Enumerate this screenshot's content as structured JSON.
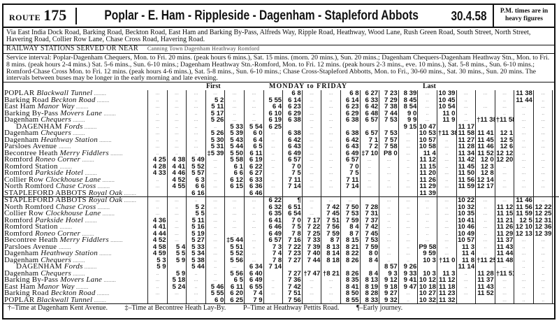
{
  "header": {
    "route_label": "ROUTE",
    "route_number": "175",
    "title": "Poplar - E. Ham - Rippleside - Dagenham - Stapleford Abbots",
    "date": "30.4.58",
    "pm_note": "P.M. times are in heavy figures"
  },
  "via": "Via East India Dock Road, Barking Road, Beckton Road, East Ham and Barking By-Pass, Alfreds Way, Ripple Road, Heathway, Wood Lane, Rush Green Road, South Street, North Street, Havering Road, Collier Row Lane, Chase Cross Road, Havering Road.",
  "railway": {
    "label": "RAILWAY STATIONS SERVED OR NEAR",
    "stations": "Canning Town  Dagenham Heathway  Romford"
  },
  "service_interval": "Service interval: Poplar-Dagenham Chequers, Mon. to Fri. 20 mins. (peak hours 6 mins.), Sat. 15 mins. (morn. 20 mins.), Sun. 20 mins.; Dagenham Chequers-Dagenham Heathway Stn., Mon. to Fri. 8 mins. (peak hours 2-4 mins.) Sat. 5-6 mins., Sun. 6-10 mins.; Dagenham Heathway Stn.-Romford, Mon. to Fri. 12 mins. (peak hours 2-3 mins., eve. 10 mins.), Sat. 5-8 mins., Sun. 6-10 mins.; Romford-Chase Cross Mon. to Fri. 12 mins. (peak hours 4-6 mins.), Sat. 5-8 mins., Sun. 6-10 mins.; Chase Cross-Stapleford Abbotts, Mon. to Fri., 30-60 mins., Sat. 30 mins., Sun. 20 mins. The intervals between buses may be longer in the early morning and late evening.",
  "table_header": {
    "first": "First",
    "period": "MONDAY to FRIDAY",
    "last": "Last"
  },
  "outbound": [
    {
      "stop": "POPLAR",
      "detail": "Blackwall Tunnel",
      "times": [
        "...",
        "...",
        "...",
        "...",
        "...",
        "...",
        "",
        "6 8",
        "...",
        "...",
        "6 8",
        "6 27",
        "7 23",
        "8 39",
        "...",
        "10 39",
        "...",
        "...",
        "...",
        "11 38",
        "...",
        "..."
      ]
    },
    {
      "stop": "Barking Road",
      "detail": "Beckton Road",
      "times": [
        "..",
        "..",
        "..",
        "5 2",
        "..",
        "..",
        "5 55",
        "6 14",
        "..",
        "..",
        "6 14",
        "6 33",
        "7 29",
        "8 45",
        "..",
        "10 45",
        "..",
        "",
        "..",
        "11 44",
        "..",
        ".."
      ]
    },
    {
      "stop": "East Ham",
      "detail": "Manor Way",
      "times": [
        "...",
        "...",
        "...",
        "5 11",
        "...",
        "...",
        "6 4",
        "6 23",
        "...",
        "...",
        "6 23",
        "6 42",
        "7 38",
        "8 54",
        "...",
        "10 54",
        "...",
        "...",
        "...",
        "...",
        "...",
        "..."
      ]
    },
    {
      "stop": "Barking By-Pass",
      "detail": "Movers Lane",
      "times": [
        "..",
        "..",
        "..",
        "5 17",
        "..",
        "..",
        "6 10",
        "6 29",
        "...",
        "..",
        "6 29",
        "6 48",
        "7 44",
        "9 0",
        "..",
        "11 0",
        "..",
        "",
        "..",
        "..",
        "..",
        ".."
      ]
    },
    {
      "stop": "Dagenham",
      "detail": "Chequers",
      "times": [
        "...",
        "...",
        "...",
        "5 26",
        "...",
        "...",
        "6 19",
        "6 38",
        "...",
        "...",
        "6 38",
        "6 57",
        "7 53",
        "9 9",
        "...",
        "11 9",
        "...",
        "†11 38",
        "†11 58",
        "...",
        "...",
        "..."
      ]
    },
    {
      "stop": "DAGENHAM",
      "detail": "Fords",
      "indent": true,
      "times": [
        "..",
        "..",
        "..",
        "..",
        "5 33",
        "5 54",
        "6 25",
        "",
        "..",
        "..",
        "",
        "",
        "",
        "9 15",
        "10 47",
        "",
        "11 17",
        "",
        "",
        "..",
        "..",
        ".."
      ]
    },
    {
      "stop": "Dagenham",
      "detail": "Chequers",
      "times": [
        "...",
        "...",
        "...",
        "5 26",
        "5 39",
        "6 0",
        "...",
        "6 38",
        "...",
        "...",
        "6 38",
        "6 57",
        "7 53",
        "...",
        "10 53",
        "†11 38",
        "11 58",
        "11 41",
        "12 1",
        "...",
        "...",
        "..."
      ]
    },
    {
      "stop": "Dagenham",
      "detail": "Heathway Station",
      "times": [
        "..",
        "..",
        "..",
        "5 30",
        "5 43",
        "6 4",
        "..",
        "6 42",
        "...",
        "..",
        "6 42",
        "7 1",
        "7 57",
        "...",
        "10 57",
        "..",
        "11 27",
        "11 45",
        "12 5",
        "..",
        "..",
        ".."
      ]
    },
    {
      "stop": "Parsloes Avenue",
      "detail": "",
      "times": [
        "...",
        "...",
        "...",
        "5 31",
        "5 44",
        "6 5",
        "...",
        "6 43",
        "..",
        "...",
        "6 43",
        "7 2",
        "7 58",
        "...",
        "10 58",
        "...",
        "11 28",
        "11 46",
        "12 6",
        "...",
        "...",
        "..."
      ]
    },
    {
      "stop": "Becontree Heath",
      "detail": "Merry Fiddlers",
      "times": [
        "..",
        "..",
        "..",
        "‡5 39",
        "5 50",
        "6 11",
        "..",
        "6 49",
        "...",
        "..",
        "6 49",
        "‡7 10",
        "P8 0",
        "...",
        "11 4",
        "..",
        "11 34",
        "11 52",
        "12 12",
        "..",
        "..",
        ".."
      ]
    },
    {
      "stop": "Romford",
      "detail": "Roneo Corner",
      "times": [
        "4 25",
        "4 38",
        "5 49",
        "...",
        "5 58",
        "6 19",
        "...",
        "6 57",
        "...",
        "...",
        "6 57",
        "...",
        "...",
        "..",
        "11 12",
        "...",
        "11 42",
        "12 0",
        "12 20",
        "...",
        "...",
        "..."
      ]
    },
    {
      "stop": "Romford Station",
      "detail": "",
      "times": [
        "4 28",
        "4 41",
        "5 52",
        "..",
        "6 1",
        "6 22",
        "..",
        "7 0",
        "..",
        "..",
        "7 0",
        "..",
        "..",
        "..",
        "11 15",
        "..",
        "11 45",
        "12 3",
        "..",
        "..",
        "..",
        ".."
      ]
    },
    {
      "stop": "Romford",
      "detail": "Parkside Hotel",
      "times": [
        "4 33",
        "4 46",
        "5 57",
        "...",
        "6 6",
        "6 27",
        "..",
        "7 5",
        "...",
        "...",
        "7 5",
        "...",
        "...",
        "..",
        "11 20",
        "...",
        "11 50",
        "12 8",
        "...",
        "...",
        "...",
        "..."
      ]
    },
    {
      "stop": "Collier Row",
      "detail": "Clockhouse Lane",
      "times": [
        "..",
        "4 52",
        "6 3",
        "..",
        "6 12",
        "6 33",
        "..",
        "7 11",
        "..",
        "..",
        "7 11",
        "..",
        "..",
        "..",
        "11 26",
        "..",
        "11 56",
        "12 14",
        "..",
        "..",
        "..",
        ".."
      ]
    },
    {
      "stop": "North Romford",
      "detail": "Chase Cross",
      "times": [
        "...",
        "4 55",
        "6 6",
        "...",
        "6 15",
        "6 36",
        "...",
        "7 14",
        "...",
        "...",
        "7 14",
        "...",
        "...",
        "...",
        "11 29",
        "...",
        "11 59",
        "12 17",
        "...",
        "...",
        "...",
        "..."
      ]
    },
    {
      "stop": "STAPLEFORD ABBOTS",
      "detail": "Royal Oak",
      "times": [
        "",
        "",
        "6 16",
        "",
        "",
        "6 46",
        "",
        "",
        "",
        "",
        "",
        "",
        "",
        "",
        "11 39",
        "",
        "",
        "",
        "",
        "",
        "",
        ""
      ]
    }
  ],
  "inbound": [
    {
      "stop": "STAPLEFORD ABBOTS",
      "detail": "Royal Oak",
      "times": [
        "...",
        "...",
        "..",
        "...",
        "...",
        "...",
        "6 22",
        "¶",
        "...",
        "...",
        "...",
        "",
        "...",
        "...",
        "...",
        "...",
        "10 22",
        "...",
        "...",
        "11 46",
        "...",
        "..."
      ]
    },
    {
      "stop": "North Romford",
      "detail": "Chase Cross",
      "times": [
        "..",
        "..",
        "5 2",
        "..",
        "..",
        "..",
        "6 32",
        "6 51",
        "..",
        "7 42",
        "7 50",
        "7 28",
        "..",
        "..",
        "..",
        "..",
        "10 32",
        "..",
        "11 12",
        "11 56",
        "12 22",
        ".."
      ]
    },
    {
      "stop": "Collier Row",
      "detail": "Clockhouse Lane",
      "times": [
        "...",
        "...",
        "5 5",
        "...",
        "...",
        "...",
        "6 35",
        "6 54",
        "...",
        "7 45",
        "7 53",
        "7 31",
        "...",
        "...",
        "...",
        "...",
        "10 35",
        "...",
        "11 15",
        "11 59",
        "12 25",
        "..."
      ]
    },
    {
      "stop": "Romford",
      "detail": "Parkside Hotel",
      "times": [
        "4 36",
        "..",
        "5 11",
        "...",
        "..",
        "..",
        "6 41",
        "7 0",
        "7 17",
        "7 51",
        "7 59",
        "7 37",
        "..",
        "..",
        "..",
        "..",
        "10 41",
        "..",
        "11 21",
        "12 5",
        "12 31",
        ".."
      ]
    },
    {
      "stop": "Romford Station",
      "detail": "",
      "times": [
        "4 41",
        "...",
        "5 16",
        "..",
        "...",
        "...",
        "6 46",
        "7 5",
        "7 22",
        "7 56",
        "8 4",
        "7 42",
        "...",
        "...",
        "...",
        "...",
        "10 46",
        "...",
        "11 26",
        "12 10",
        "12 36",
        "..."
      ]
    },
    {
      "stop": "Romford",
      "detail": "Roneo Corner",
      "times": [
        "4 44",
        "...",
        "5 19",
        "..",
        "..",
        "..",
        "6 49",
        "7 8",
        "7 25",
        "7 59",
        "8 7",
        "7 45",
        "..",
        "..",
        "..",
        "..",
        "10 49",
        "..",
        "11 29",
        "12 13",
        "12 39",
        ".."
      ]
    },
    {
      "stop": "Becontree Heath",
      "detail": "Merry Fiddlers",
      "times": [
        "4 52",
        "...",
        "5 27",
        "...",
        "‡5 44",
        "...",
        "6 57",
        "7 16",
        "7 33",
        "8 7",
        "8 15",
        "7 53",
        "...",
        "...",
        "...",
        "...",
        "10 57",
        "...",
        "11 37",
        "...",
        "...",
        "..."
      ]
    },
    {
      "stop": "Parsloes Avenue",
      "detail": "",
      "times": [
        "4 58",
        "5 4",
        "5 33",
        "..",
        "5 51",
        "..",
        "7 3",
        "7 22",
        "7 39",
        "8 13",
        "8 21",
        "7 59",
        "..",
        "..",
        "P9 58",
        "..",
        "11 3",
        "..",
        "11 43",
        "..",
        "..",
        ".."
      ]
    },
    {
      "stop": "Dagenham",
      "detail": "Heathway Station",
      "times": [
        "4 59",
        "5 5",
        "5 34",
        "...",
        "5 52",
        "...",
        "7 4",
        "7 23",
        "7 40",
        "8 14",
        "8 22",
        "8 0",
        "...",
        "...",
        "9 59",
        "...",
        "11 4",
        "...",
        "11 44",
        "...",
        "...",
        "..."
      ]
    },
    {
      "stop": "Dagenham",
      "detail": "Chequers",
      "times": [
        "5 3",
        "5 9",
        "5 38",
        "..",
        "5 56",
        "...",
        "7 8",
        "7 27",
        "7 44",
        "8 18",
        "8 26",
        "8 4",
        "..",
        "..",
        "10 3",
        "†11 0",
        "11 8",
        "†11 25",
        "11 48",
        "..",
        "..",
        ".."
      ]
    },
    {
      "stop": "DAGENHAM",
      "detail": "Fords",
      "indent": true,
      "times": [
        "5 9",
        "",
        "5 44",
        "..",
        "...",
        "6 34",
        "7 14",
        "",
        "",
        "",
        "",
        "",
        "8 57",
        "9 26",
        "",
        "",
        "11 14",
        "",
        "...",
        "..",
        "..",
        ".."
      ]
    },
    {
      "stop": "Dagenham",
      "detail": "Chequers",
      "times": [
        "..",
        "5 9",
        "..",
        "..",
        "5 56",
        "6 40",
        "",
        "7 27",
        "†7 47",
        "†8 21",
        "8 26",
        "8 4",
        "9 3",
        "9 33",
        "10 3",
        "11 3",
        "..",
        "11 28",
        "†11 51",
        "..",
        "..",
        ".."
      ]
    },
    {
      "stop": "Barking By-Pass",
      "detail": "Movers Lane",
      "times": [
        "...",
        "5 18",
        "...",
        "...",
        "6 5",
        "6 49",
        "..",
        "7 36",
        "...",
        "...",
        "8 35",
        "8 13",
        "9 12",
        "9 41",
        "10 12",
        "11 12",
        "...",
        "11 37",
        "...",
        "...",
        "...",
        "..."
      ]
    },
    {
      "stop": "East Ham",
      "detail": "Manor Way",
      "times": [
        "..",
        "5 24",
        "..",
        "5 46",
        "6 11",
        "6 55",
        "..",
        "7 42",
        "..",
        "..",
        "8 41",
        "8 19",
        "9 18",
        "9 47",
        "10 18",
        "11 18",
        "..",
        "11 43",
        "..",
        "..",
        "..",
        ".."
      ]
    },
    {
      "stop": "Barking Road",
      "detail": "Beckton Road",
      "times": [
        "...",
        "...",
        "...",
        "5 55",
        "6 20",
        "7 4",
        "...",
        "7 51",
        "...",
        "...",
        "8 50",
        "8 28",
        "9 27",
        "...",
        "10 27",
        "11 23",
        "...",
        "11 52",
        "...",
        "...",
        "...",
        "..."
      ]
    },
    {
      "stop": "POPLAR",
      "detail": "Blackwall Tunnel",
      "times": [
        "",
        "",
        "..",
        "6 0",
        "6 25",
        "7 9",
        "",
        "7 56",
        "..",
        "..",
        "8 55",
        "8 33",
        "9 32",
        "..",
        "10 32",
        "11 32",
        "",
        "",
        "...",
        "..",
        "..",
        ".."
      ]
    }
  ],
  "footnotes": [
    "†–Time at Dagenham Kent Avenue.",
    "‡–Time at Becontree Heath Lay-By.",
    "P–Time at Heathway Pettits Road.",
    "¶–Early journey."
  ]
}
